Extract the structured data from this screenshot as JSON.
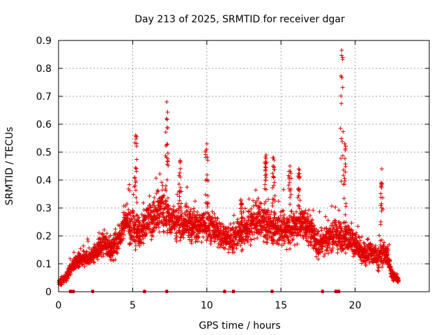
{
  "chart_data": {
    "type": "scatter",
    "title": "Day 213 of 2025, SRMTID for receiver dgar",
    "xlabel": "GPS time / hours",
    "ylabel": "SRMTID / TECUs",
    "xlim": [
      0,
      25
    ],
    "ylim": [
      0,
      0.9
    ],
    "xticks": [
      "0",
      "5",
      "10",
      "15",
      "20"
    ],
    "xtick_values": [
      0,
      5,
      10,
      15,
      20
    ],
    "yticks": [
      "0",
      "0.1",
      "0.2",
      "0.3",
      "0.4",
      "0.5",
      "0.6",
      "0.7",
      "0.8",
      "0.9"
    ],
    "ytick_values": [
      0,
      0.1,
      0.2,
      0.3,
      0.4,
      0.5,
      0.6,
      0.7,
      0.8,
      0.9
    ],
    "grid": true,
    "marker": "plus",
    "color": "#e00000",
    "envelope": {
      "description": "approximate base level and spread of SRMTID samples over time",
      "x": [
        0.0,
        0.5,
        1.0,
        1.5,
        2.0,
        2.5,
        3.0,
        3.5,
        4.0,
        4.5,
        5.0,
        5.5,
        6.0,
        6.5,
        7.0,
        7.5,
        8.0,
        8.5,
        9.0,
        9.5,
        10.0,
        10.5,
        11.0,
        11.5,
        12.0,
        12.5,
        13.0,
        13.5,
        14.0,
        14.5,
        15.0,
        15.5,
        16.0,
        16.5,
        17.0,
        17.5,
        18.0,
        18.5,
        19.0,
        19.5,
        20.0,
        20.5,
        21.0,
        21.5,
        22.0,
        22.5,
        23.0
      ],
      "base": [
        0.03,
        0.05,
        0.1,
        0.12,
        0.12,
        0.14,
        0.17,
        0.15,
        0.18,
        0.25,
        0.22,
        0.22,
        0.26,
        0.26,
        0.3,
        0.25,
        0.25,
        0.24,
        0.24,
        0.23,
        0.24,
        0.22,
        0.2,
        0.19,
        0.2,
        0.22,
        0.24,
        0.26,
        0.25,
        0.22,
        0.23,
        0.22,
        0.24,
        0.25,
        0.22,
        0.17,
        0.19,
        0.2,
        0.2,
        0.2,
        0.17,
        0.13,
        0.14,
        0.12,
        0.15,
        0.06,
        0.04
      ],
      "spread": [
        0.015,
        0.02,
        0.03,
        0.03,
        0.035,
        0.04,
        0.05,
        0.05,
        0.06,
        0.06,
        0.08,
        0.07,
        0.08,
        0.08,
        0.09,
        0.07,
        0.07,
        0.07,
        0.07,
        0.07,
        0.07,
        0.06,
        0.05,
        0.06,
        0.07,
        0.07,
        0.07,
        0.08,
        0.08,
        0.07,
        0.07,
        0.07,
        0.07,
        0.07,
        0.07,
        0.05,
        0.06,
        0.06,
        0.07,
        0.07,
        0.05,
        0.04,
        0.05,
        0.05,
        0.06,
        0.02,
        0.01
      ]
    },
    "peaks": [
      {
        "x": 5.2,
        "y": 0.56
      },
      {
        "x": 7.3,
        "y": 0.68
      },
      {
        "x": 8.2,
        "y": 0.47
      },
      {
        "x": 10.0,
        "y": 0.53
      },
      {
        "x": 12.3,
        "y": 0.33
      },
      {
        "x": 14.0,
        "y": 0.49
      },
      {
        "x": 14.5,
        "y": 0.48
      },
      {
        "x": 15.6,
        "y": 0.45
      },
      {
        "x": 16.2,
        "y": 0.44
      },
      {
        "x": 19.1,
        "y": 0.865
      },
      {
        "x": 19.3,
        "y": 0.53
      },
      {
        "x": 21.8,
        "y": 0.44
      }
    ],
    "gap_markers_x": [
      0.8,
      1.0,
      2.3,
      5.8,
      7.3,
      11.2,
      11.8,
      14.4,
      17.8,
      18.7,
      18.9
    ]
  }
}
